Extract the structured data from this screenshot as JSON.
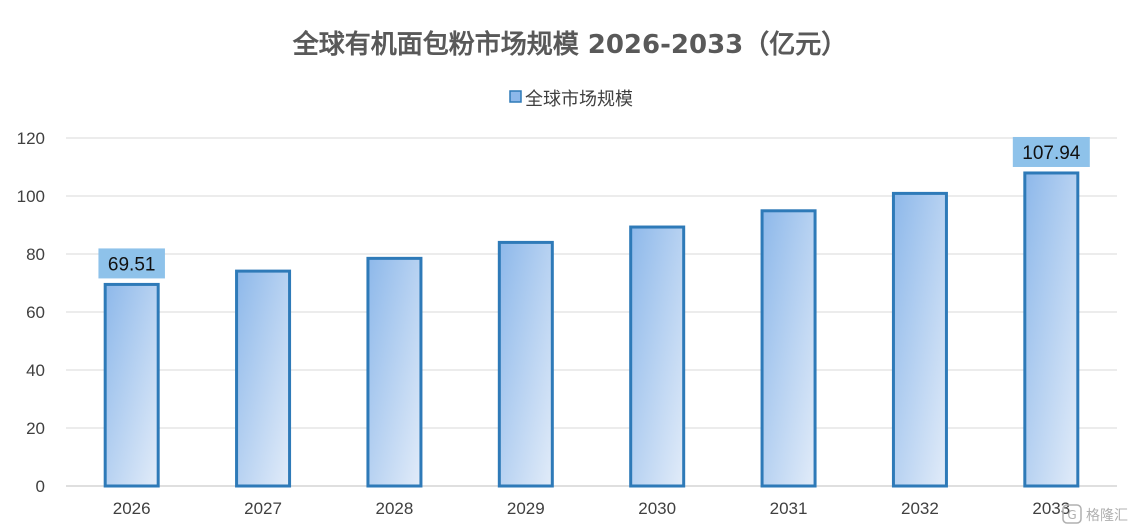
{
  "chart_data": {
    "type": "bar",
    "title": "全球有机面包粉市场规模 2026-2033（亿元）",
    "categories": [
      "2026",
      "2027",
      "2028",
      "2029",
      "2030",
      "2031",
      "2032",
      "2033"
    ],
    "series": [
      {
        "name": "全球市场规模",
        "values": [
          69.51,
          74.1,
          78.5,
          84.0,
          89.3,
          94.9,
          100.9,
          107.94
        ]
      }
    ],
    "data_labels": [
      {
        "category": "2026",
        "text": "69.51"
      },
      {
        "category": "2033",
        "text": "107.94"
      }
    ],
    "ylim": [
      0,
      120
    ],
    "yticks": [
      0,
      20,
      40,
      60,
      80,
      100,
      120
    ],
    "xlabel": "",
    "ylabel": "",
    "grid": true,
    "legend_position": "top"
  },
  "colors": {
    "bar_fill_start": "#8db8ea",
    "bar_fill_end": "#e2ecf9",
    "bar_stroke": "#2e7ab8",
    "label_bg": "#8ec2ea",
    "grid": "#d9d9d9",
    "axis": "#bfbfbf"
  },
  "watermark": {
    "icon": "gelonghui-logo-icon",
    "text": "格隆汇"
  }
}
